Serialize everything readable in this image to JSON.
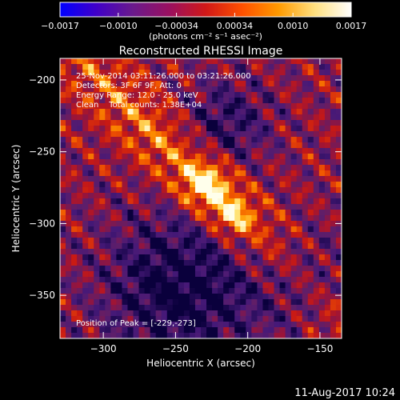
{
  "chart_data": {
    "type": "heatmap",
    "title": "Reconstructed RHESSI Image",
    "xlabel": "Heliocentric X (arcsec)",
    "ylabel": "Heliocentric Y (arcsec)",
    "xlim": [
      -330,
      -135
    ],
    "ylim": [
      -380,
      -185
    ],
    "xticks": [
      -300,
      -250,
      -200,
      -150
    ],
    "yticks": [
      -200,
      -250,
      -300,
      -350
    ],
    "xtick_labels": [
      "−300",
      "−250",
      "−200",
      "−150"
    ],
    "ytick_labels": [
      "−200",
      "−250",
      "−300",
      "−350"
    ],
    "colorbar": {
      "ticks": [
        -0.0017,
        -0.001,
        -0.00034,
        0.00034,
        0.001,
        0.0017
      ],
      "tick_labels": [
        "−0.0017",
        "−0.0010",
        "−0.00034",
        "0.00034",
        "0.0010",
        "0.0017"
      ],
      "units_label": "(photons cm⁻² s⁻¹ asec⁻²)",
      "colors": [
        "#0000ff",
        "#4000c8",
        "#6a1a8c",
        "#9a1060",
        "#d01818",
        "#ff5000",
        "#ff9a00",
        "#ffe080",
        "#ffffff"
      ]
    },
    "annotations": [
      "25-Nov-2014 03:11:26.000 to 03:21:26.000",
      "Detectors: 3F 6F 9F, Att: 0",
      "Energy Range: 12.0 - 25.0 keV",
      "Clean    Total counts: 1.38E+04"
    ],
    "peak_label": "Position of Peak = [-229,-273]",
    "peak": [
      -229,
      -273
    ],
    "grid": false,
    "footer": "11-Aug-2017 10:24"
  }
}
